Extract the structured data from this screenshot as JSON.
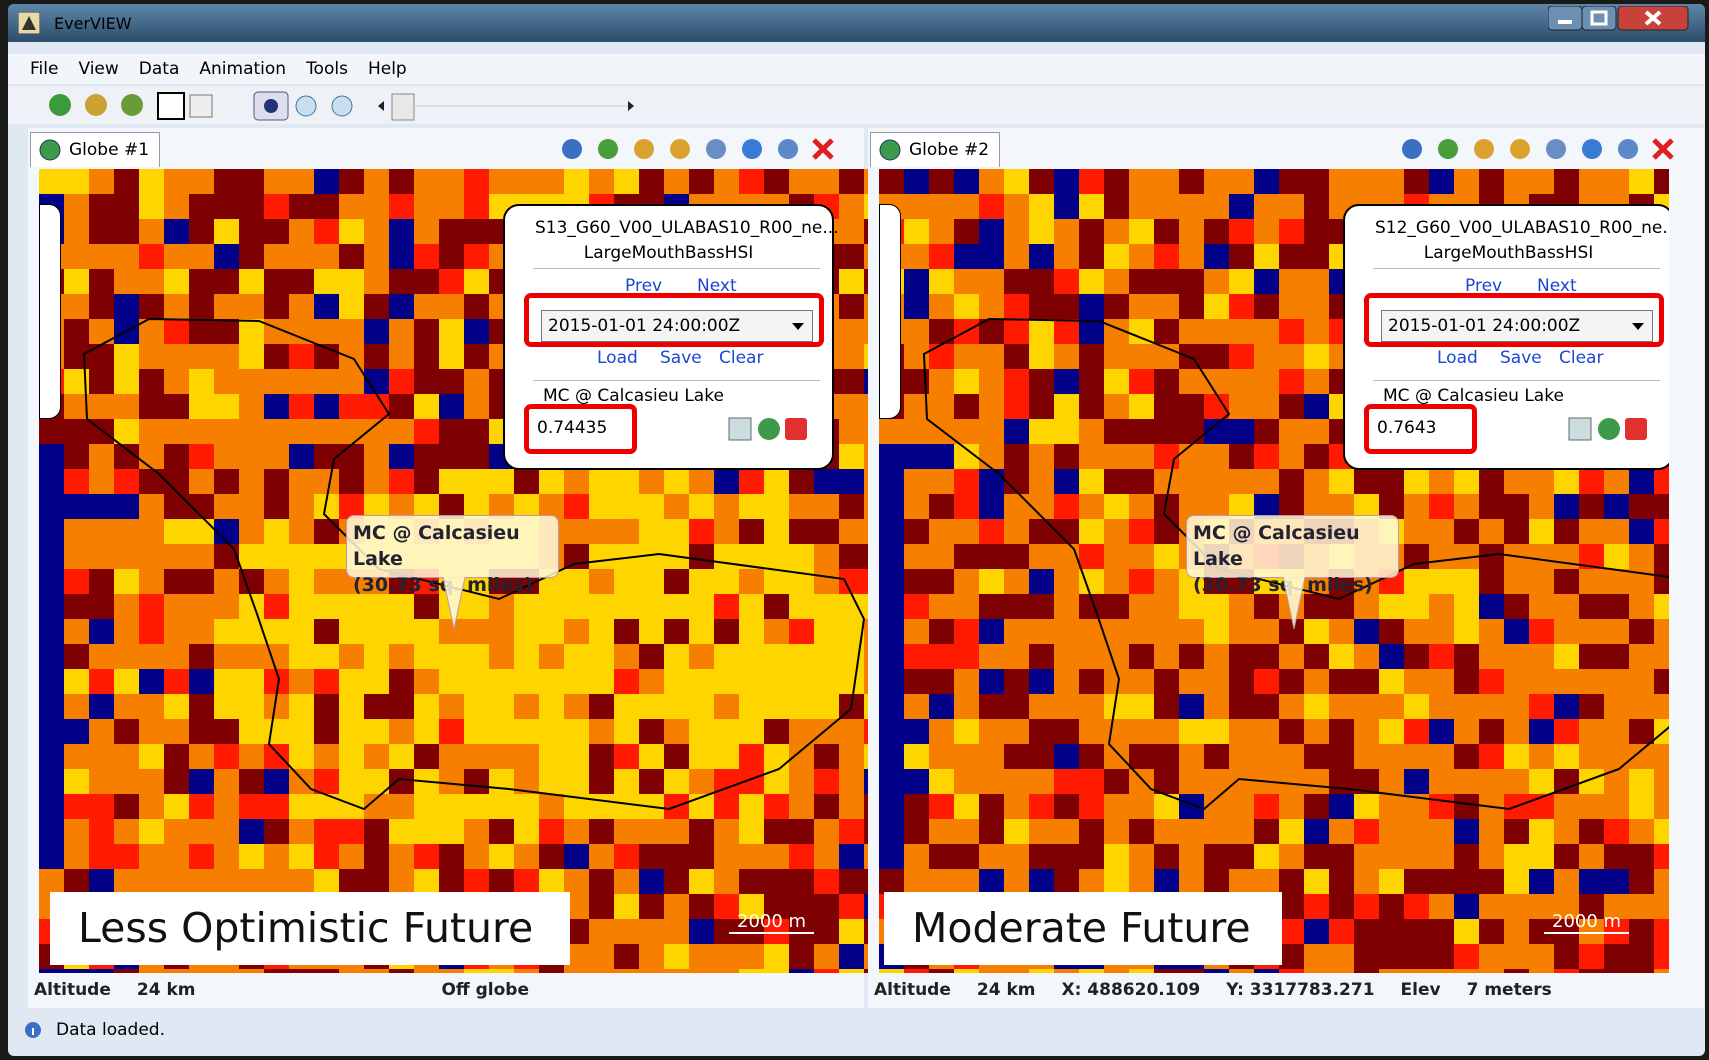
{
  "window": {
    "title": "EverVIEW"
  },
  "menu": [
    "File",
    "View",
    "Data",
    "Animation",
    "Tools",
    "Help"
  ],
  "panels": [
    {
      "tab": "Globe #1",
      "dataset": "S13_G60_V00_ULABAS10_R00_ne...",
      "layer": "LargeMouthBassHSI",
      "prev": "Prev",
      "next": "Next",
      "time": "2015-01-01 24:00:00Z",
      "load": "Load",
      "save": "Save",
      "clear": "Clear",
      "region": "MC @ Calcasieu Lake",
      "value": 0.74435,
      "callout": [
        "MC @ Calcasieu Lake",
        "(30.73 sq. miles)"
      ],
      "scenario": "Less Optimistic Future",
      "scale": "2000 m",
      "status": [
        "Altitude",
        "24 km",
        "Off globe"
      ]
    },
    {
      "tab": "Globe #2",
      "dataset": "S12_G60_V00_ULABAS10_R00_ne...",
      "layer": "LargeMouthBassHSI",
      "prev": "Prev",
      "next": "Next",
      "time": "2015-01-01 24:00:00Z",
      "load": "Load",
      "save": "Save",
      "clear": "Clear",
      "region": "MC @ Calcasieu Lake",
      "value": 0.7643,
      "callout": [
        "MC @ Calcasieu Lake",
        "(30.73 sq. miles)"
      ],
      "scenario": "Moderate Future",
      "scale": "2000 m",
      "status": [
        "Altitude",
        "24 km",
        "X: 488620.109",
        "Y: 3317783.271",
        "Elev",
        "7 meters"
      ]
    }
  ],
  "statusbar": "Data loaded."
}
